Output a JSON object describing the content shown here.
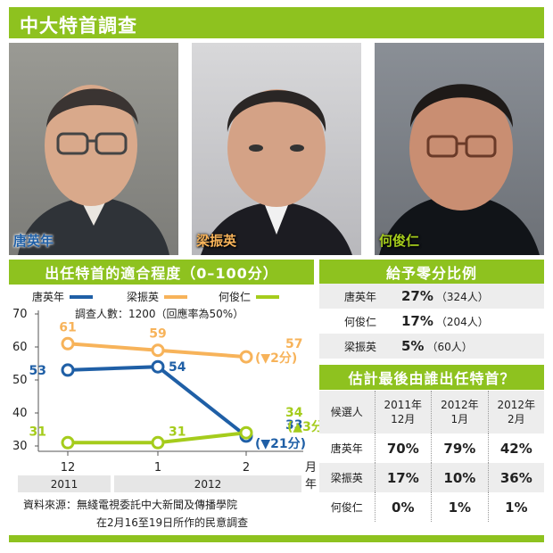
{
  "header": {
    "title": "中大特首調查"
  },
  "photos": [
    {
      "name": "唐英年"
    },
    {
      "name": "梁振英"
    },
    {
      "name": "何俊仁"
    }
  ],
  "colors": {
    "accent": "#8ec21f",
    "tang": "#1f5fa6",
    "leung": "#f7b35a",
    "ho": "#a5cc1c"
  },
  "left_panel": {
    "title": "出任特首的適合程度（0–100分）",
    "survey_note": "調查人數：1200（回應率為50%）",
    "source_line1": "資料來源：無綫電視委託中大新聞及傳播學院",
    "source_line2": "在2月16至19日所作的民意調查"
  },
  "chart_data": {
    "type": "line",
    "title": "出任特首的適合程度（0–100分）",
    "x": [
      "12",
      "1",
      "2"
    ],
    "x_axis_unit": "月",
    "year_labels": [
      "2011",
      "2012"
    ],
    "year_axis_unit": "年",
    "ylim": [
      30,
      70
    ],
    "yticks": [
      30,
      40,
      50,
      60,
      70
    ],
    "grid": false,
    "legend_position": "top",
    "series": [
      {
        "name": "唐英年",
        "color": "#1f5fa6",
        "values": [
          53,
          54,
          33
        ],
        "labels": [
          "53",
          "54",
          "33"
        ],
        "change": "(▼21分)"
      },
      {
        "name": "梁振英",
        "color": "#f7b35a",
        "values": [
          61,
          59,
          57
        ],
        "labels": [
          "61",
          "59",
          "57"
        ],
        "change": "(▼2分)"
      },
      {
        "name": "何俊仁",
        "color": "#a5cc1c",
        "values": [
          31,
          31,
          34
        ],
        "labels": [
          "31",
          "31",
          "34"
        ],
        "change": "(▲3分)"
      }
    ]
  },
  "zero_panel": {
    "title": "給予零分比例",
    "rows": [
      {
        "name": "唐英年",
        "pct": "27%",
        "count": "（324人）"
      },
      {
        "name": "何俊仁",
        "pct": "17%",
        "count": "（204人）"
      },
      {
        "name": "梁振英",
        "pct": "5%",
        "count": "（60人）"
      }
    ]
  },
  "estimate_panel": {
    "title": "估計最後由誰出任特首？",
    "header": {
      "label": "候選人",
      "cols": [
        [
          "2011年",
          "12月"
        ],
        [
          "2012年",
          "1月"
        ],
        [
          "2012年",
          "2月"
        ]
      ]
    },
    "rows": [
      {
        "name": "唐英年",
        "values": [
          "70%",
          "79%",
          "42%"
        ]
      },
      {
        "name": "梁振英",
        "values": [
          "17%",
          "10%",
          "36%"
        ]
      },
      {
        "name": "何俊仁",
        "values": [
          "0%",
          "1%",
          "1%"
        ]
      }
    ]
  }
}
